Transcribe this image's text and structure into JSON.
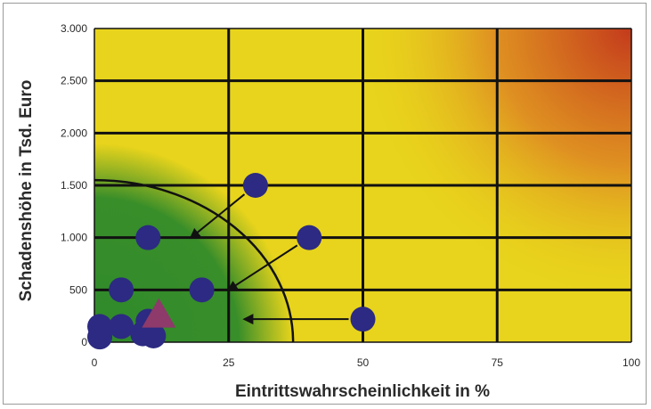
{
  "chart_data": {
    "type": "scatter",
    "title": "",
    "xlabel": "Eintrittswahrscheinlichkeit in %",
    "ylabel": "Schadenshöhe in Tsd. Euro",
    "xlim": [
      0,
      100
    ],
    "ylim": [
      0,
      3000
    ],
    "x_ticks": [
      0,
      25,
      50,
      75,
      100
    ],
    "y_ticks": [
      0,
      500,
      1000,
      1500,
      2000,
      2500,
      3000
    ],
    "x_tick_labels": [
      "0",
      "25",
      "50",
      "75",
      "100"
    ],
    "y_tick_labels": [
      "0",
      "500",
      "1.000",
      "1.500",
      "2.000",
      "2.500",
      "3.000"
    ],
    "grid_x": [
      0,
      25,
      50,
      75,
      100
    ],
    "grid_y": [
      0,
      500,
      1000,
      1500,
      2000,
      2500,
      3000
    ],
    "background": "risk gradient: green (low) to yellow to red (high)",
    "points": [
      {
        "x": 30,
        "y": 1500
      },
      {
        "x": 10,
        "y": 1000
      },
      {
        "x": 40,
        "y": 1000
      },
      {
        "x": 5,
        "y": 500
      },
      {
        "x": 20,
        "y": 500
      },
      {
        "x": 50,
        "y": 220
      },
      {
        "x": 1,
        "y": 150
      },
      {
        "x": 5,
        "y": 150
      },
      {
        "x": 10,
        "y": 200
      },
      {
        "x": 1,
        "y": 50
      },
      {
        "x": 9,
        "y": 80
      },
      {
        "x": 11,
        "y": 60
      }
    ],
    "triangle": {
      "x": 12,
      "y": 250
    },
    "arrows": [
      {
        "from": [
          30,
          1500
        ],
        "to": [
          18,
          1000
        ]
      },
      {
        "from": [
          40,
          1000
        ],
        "to": [
          25,
          500
        ]
      },
      {
        "from": [
          50,
          220
        ],
        "to": [
          28,
          220
        ]
      }
    ],
    "threshold_curve": {
      "x_intercept": 37,
      "y_intercept": 1550
    },
    "colors": {
      "point": "#2c2a82",
      "triangle": "#8e3a6a",
      "grid": "#111111",
      "green": "#2f8a2a",
      "yellow": "#e8d41c",
      "orange": "#de8a22",
      "red": "#c43a1c"
    }
  }
}
